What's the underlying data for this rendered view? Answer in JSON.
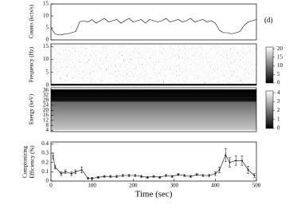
{
  "chart_data": [
    {
      "type": "line",
      "ylabel": "Counts (kcts/s)",
      "annotation": "(d)",
      "xlim": [
        0,
        500
      ],
      "ylim": [
        0,
        15
      ],
      "yticks": [
        0,
        5,
        10,
        15
      ],
      "color": "#000000",
      "x": [
        0,
        10,
        20,
        30,
        40,
        50,
        60,
        70,
        80,
        90,
        100,
        110,
        120,
        130,
        140,
        150,
        160,
        170,
        180,
        190,
        200,
        210,
        220,
        230,
        240,
        250,
        260,
        270,
        280,
        290,
        300,
        310,
        320,
        330,
        340,
        350,
        360,
        370,
        380,
        390,
        400,
        410,
        420,
        430,
        440,
        450,
        460,
        470,
        480,
        490,
        500
      ],
      "values": [
        5,
        2.5,
        2,
        2.3,
        2.5,
        3,
        3.5,
        7.5,
        8,
        7.5,
        8.5,
        7,
        8,
        9,
        7.5,
        8,
        8.5,
        7,
        8,
        9,
        7.5,
        8,
        8.5,
        7,
        8.5,
        8,
        7.5,
        8,
        9,
        7.5,
        8,
        8.5,
        7.5,
        8,
        9,
        7.5,
        8,
        8.5,
        7.5,
        8,
        7,
        4,
        3,
        3,
        2.5,
        3,
        3.5,
        6,
        7.5,
        8,
        8.5
      ]
    },
    {
      "type": "heatmap",
      "ylabel": "Frequency (Hz)",
      "xlim": [
        0,
        500
      ],
      "ylim": [
        0,
        16
      ],
      "yticks": [
        0,
        5,
        10,
        15
      ],
      "clim": [
        0,
        21
      ],
      "cticks": [
        0,
        5,
        10,
        15,
        20
      ]
    },
    {
      "type": "heatmap",
      "ylabel": "Energy (keV)",
      "xlim": [
        0,
        500
      ],
      "ylim": [
        3,
        38
      ],
      "yticks": [
        4,
        8,
        12,
        16,
        20,
        24,
        28,
        32,
        36
      ],
      "clim": [
        0,
        4.2
      ],
      "cticks": [
        0,
        1,
        2,
        3,
        4
      ]
    },
    {
      "type": "errorbar",
      "ylabel": [
        "Comptonizing",
        "Efficiency (%)"
      ],
      "xlabel": "Time (sec)",
      "color": "#000000",
      "xlim": [
        0,
        500
      ],
      "ylim": [
        0,
        0.42
      ],
      "yticks": [
        0,
        0.1,
        0.2,
        0.3,
        0.4
      ],
      "xticks": [
        0,
        100,
        200,
        300,
        400,
        500
      ],
      "x": [
        5,
        10,
        25,
        35,
        50,
        60,
        75,
        90,
        100,
        115,
        130,
        145,
        160,
        175,
        190,
        205,
        220,
        235,
        250,
        265,
        280,
        295,
        310,
        325,
        340,
        355,
        370,
        385,
        400,
        410,
        425,
        435,
        450,
        465,
        480,
        495
      ],
      "values": [
        0.27,
        0.15,
        0.08,
        0.1,
        0.08,
        0.1,
        0.12,
        0.03,
        0.03,
        0.04,
        0.05,
        0.05,
        0.05,
        0.06,
        0.06,
        0.06,
        0.05,
        0.04,
        0.05,
        0.04,
        0.06,
        0.05,
        0.07,
        0.06,
        0.05,
        0.07,
        0.06,
        0.06,
        0.08,
        0.12,
        0.28,
        0.2,
        0.22,
        0.22,
        0.12,
        0.06
      ],
      "errors": [
        0.03,
        0.02,
        0.02,
        0.02,
        0.02,
        0.02,
        0.03,
        0.01,
        0.01,
        0.01,
        0.01,
        0.01,
        0.01,
        0.01,
        0.01,
        0.01,
        0.01,
        0.01,
        0.01,
        0.01,
        0.01,
        0.01,
        0.01,
        0.01,
        0.01,
        0.01,
        0.01,
        0.01,
        0.02,
        0.03,
        0.07,
        0.05,
        0.05,
        0.05,
        0.04,
        0.02
      ]
    }
  ]
}
